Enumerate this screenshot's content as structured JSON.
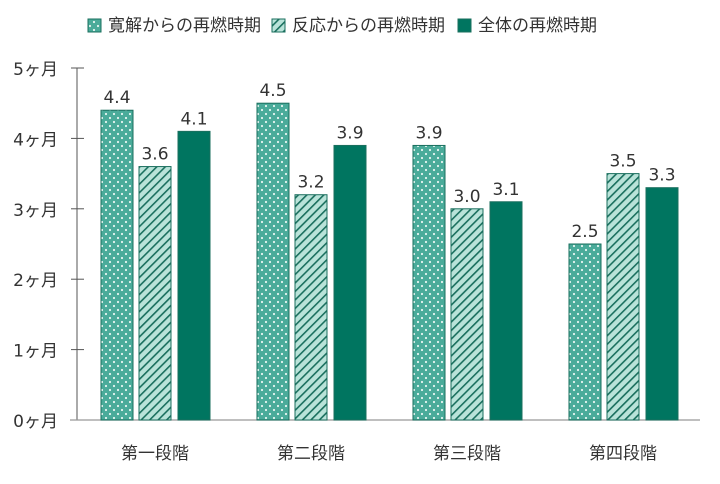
{
  "chart_data": {
    "type": "bar",
    "categories": [
      "第一段階",
      "第二段階",
      "第三段階",
      "第四段階"
    ],
    "series": [
      {
        "name": "寛解からの再燃時期",
        "values": [
          4.4,
          4.5,
          3.9,
          2.5
        ],
        "pattern": "dots",
        "color": "#4aab9a"
      },
      {
        "name": "反応からの再燃時期",
        "values": [
          3.6,
          3.2,
          3.0,
          3.5
        ],
        "pattern": "diagonal-hatch",
        "color": "#b9e3d9"
      },
      {
        "name": "全体の再燃時期",
        "values": [
          4.1,
          3.9,
          3.1,
          3.3
        ],
        "pattern": "solid",
        "color": "#007560"
      }
    ],
    "data_labels": [
      [
        "4.4",
        "4.5",
        "3.9",
        "2.5"
      ],
      [
        "3.6",
        "3.2",
        "3.0",
        "3.5"
      ],
      [
        "4.1",
        "3.9",
        "3.1",
        "3.3"
      ]
    ],
    "y_ticks": [
      "0ヶ月",
      "1ヶ月",
      "2ヶ月",
      "3ヶ月",
      "4ヶ月",
      "5ヶ月"
    ],
    "ylim": [
      0,
      5
    ],
    "grid": false,
    "legend_position": "top",
    "border_color": "#1a6f5e"
  }
}
